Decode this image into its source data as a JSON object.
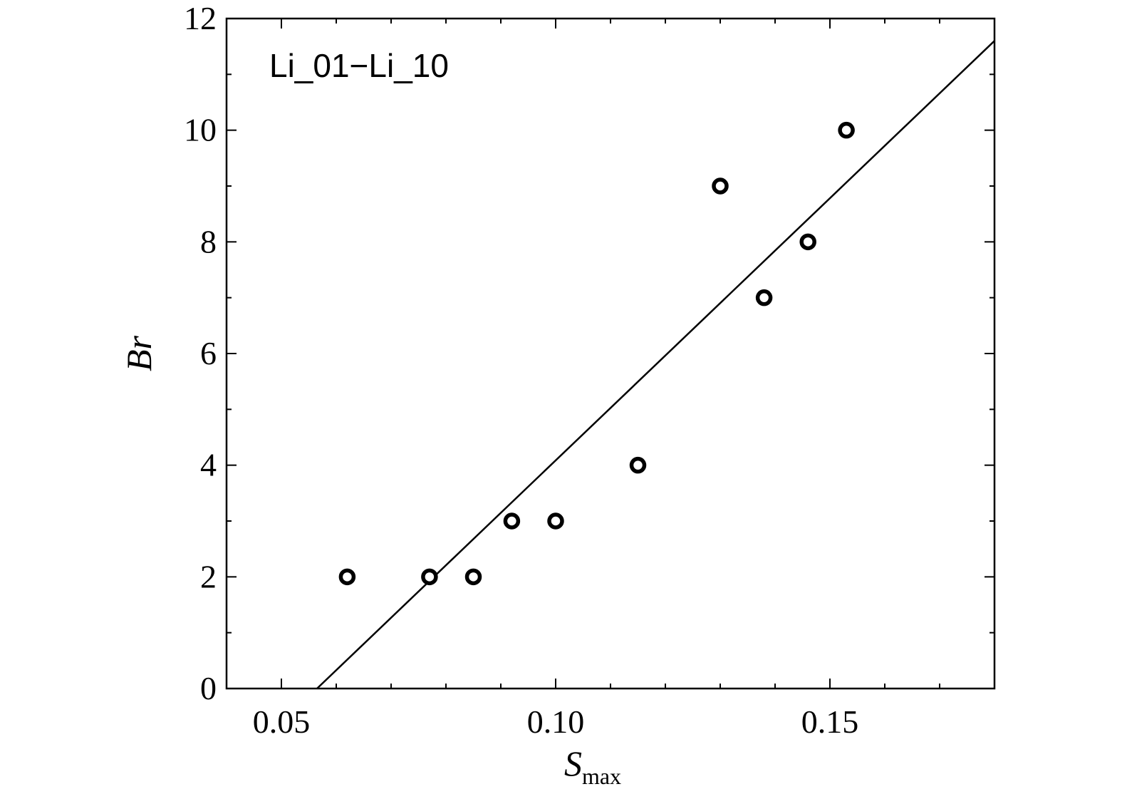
{
  "chart_data": {
    "type": "scatter",
    "title": "",
    "annotation": "Li_01−Li_10",
    "xlabel": "S",
    "xlabel_subscript": "max",
    "ylabel": "Br",
    "xlim": [
      0.04,
      0.18
    ],
    "ylim": [
      0,
      12
    ],
    "xticks_major": [
      0.05,
      0.1,
      0.15
    ],
    "xtick_labels": [
      "0.05",
      "0.10",
      "0.15"
    ],
    "yticks_major": [
      0,
      2,
      4,
      6,
      8,
      10,
      12
    ],
    "ytick_labels": [
      "0",
      "2",
      "4",
      "6",
      "8",
      "10",
      "12"
    ],
    "grid": false,
    "series": [
      {
        "type": "scatter",
        "marker": "open-circle",
        "x": [
          0.062,
          0.077,
          0.085,
          0.092,
          0.1,
          0.115,
          0.13,
          0.138,
          0.146,
          0.153
        ],
        "y": [
          2,
          2,
          2,
          3,
          3,
          4,
          9,
          7,
          8,
          10
        ]
      },
      {
        "type": "line",
        "x": [
          0.0565,
          0.18
        ],
        "y": [
          0,
          11.6
        ]
      }
    ],
    "colors": {
      "axis": "#000000",
      "marker": "#000000",
      "line": "#000000"
    }
  }
}
